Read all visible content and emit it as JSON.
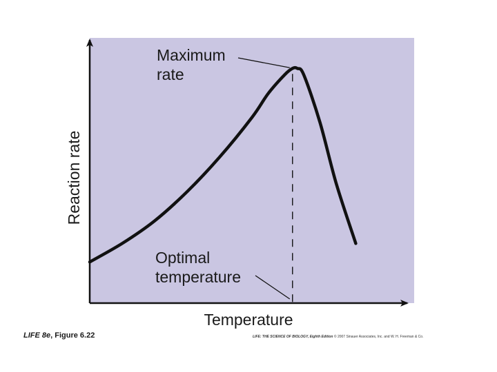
{
  "caption": {
    "book": "LIFE 8e",
    "rest": ", Figure 6.22"
  },
  "credit": {
    "title": "LIFE: THE SCIENCE OF BIOLOGY, Eighth Edition",
    "rest": " © 2007 Sinauer Associates, Inc. and W. H. Freeman & Co."
  },
  "colors": {
    "plot_background": "#cac6e2",
    "curve": "#111111",
    "axis": "#111111"
  },
  "chart_data": {
    "type": "line",
    "title": "",
    "xlabel": "Temperature",
    "ylabel": "Reaction rate",
    "xlim": [
      0,
      1
    ],
    "ylim": [
      0,
      1
    ],
    "grid": false,
    "legend": "none",
    "ticks": "none",
    "series": [
      {
        "x": [
          0.0,
          0.1,
          0.2,
          0.3,
          0.4,
          0.5,
          0.55,
          0.6,
          0.625,
          0.64,
          0.66,
          0.71,
          0.76,
          0.82
        ],
        "y": [
          0.155,
          0.225,
          0.31,
          0.42,
          0.55,
          0.7,
          0.79,
          0.86,
          0.885,
          0.885,
          0.86,
          0.68,
          0.45,
          0.225
        ]
      }
    ],
    "annotations": [
      {
        "line1": "Maximum",
        "line2": "rate",
        "x": 0.625,
        "y": 0.885
      },
      {
        "line1": "Optimal",
        "line2": "temperature",
        "x": 0.625,
        "y": 0.0
      }
    ],
    "optimum_x": 0.625
  }
}
